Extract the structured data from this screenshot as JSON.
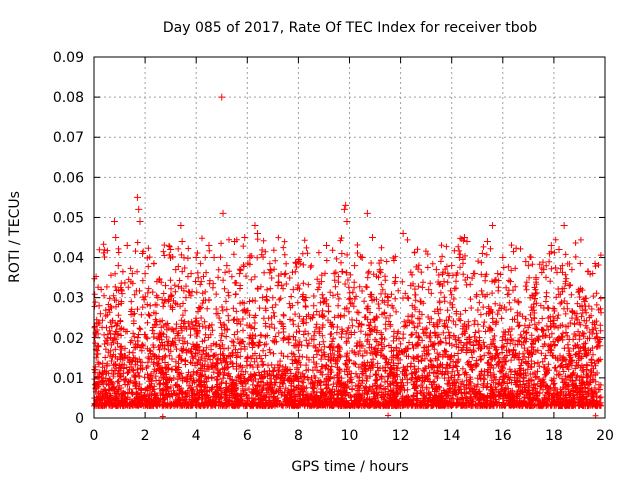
{
  "chart_data": {
    "type": "scatter",
    "title": "Day 085 of 2017, Rate Of TEC Index for receiver tbob",
    "xlabel": "GPS time / hours",
    "ylabel": "ROTI / TECUs",
    "xlim": [
      0,
      20
    ],
    "ylim": [
      0,
      0.09
    ],
    "xticks": [
      0,
      2,
      4,
      6,
      8,
      10,
      12,
      14,
      16,
      18,
      20
    ],
    "xtick_labels": [
      "0",
      "2",
      "4",
      "6",
      "8",
      "10",
      "12",
      "14",
      "16",
      "18",
      "20"
    ],
    "yticks": [
      0,
      0.01,
      0.02,
      0.03,
      0.04,
      0.05,
      0.06,
      0.07,
      0.08,
      0.09
    ],
    "ytick_labels": [
      "0",
      "0.01",
      "0.02",
      "0.03",
      "0.04",
      "0.05",
      "0.06",
      "0.07",
      "0.08",
      "0.09"
    ],
    "grid": true,
    "marker": "+",
    "color": "#ff0000",
    "series": [
      {
        "name": "ROTI",
        "points": [
          [
            0.05,
            0.012
          ],
          [
            0.15,
            0.016
          ],
          [
            0.2,
            0.028
          ],
          [
            0.25,
            0.026
          ],
          [
            0.3,
            0.009
          ],
          [
            0.5,
            0.013
          ],
          [
            0.65,
            0.021
          ],
          [
            0.8,
            0.049
          ],
          [
            0.85,
            0.045
          ],
          [
            0.95,
            0.038
          ],
          [
            1.1,
            0.031
          ],
          [
            1.3,
            0.043
          ],
          [
            1.5,
            0.036
          ],
          [
            1.7,
            0.055
          ],
          [
            1.75,
            0.052
          ],
          [
            1.8,
            0.049
          ],
          [
            1.9,
            0.041
          ],
          [
            2.0,
            0.036
          ],
          [
            2.2,
            0.028
          ],
          [
            2.5,
            0.03
          ],
          [
            2.8,
            0.033
          ],
          [
            3.0,
            0.042
          ],
          [
            3.2,
            0.037
          ],
          [
            3.4,
            0.048
          ],
          [
            3.45,
            0.044
          ],
          [
            3.6,
            0.03
          ],
          [
            3.8,
            0.036
          ],
          [
            4.0,
            0.04
          ],
          [
            4.2,
            0.034
          ],
          [
            4.5,
            0.043
          ],
          [
            4.7,
            0.04
          ],
          [
            5.0,
            0.08
          ],
          [
            5.05,
            0.051
          ],
          [
            5.2,
            0.038
          ],
          [
            5.5,
            0.044
          ],
          [
            5.7,
            0.036
          ],
          [
            5.9,
            0.045
          ],
          [
            6.1,
            0.04
          ],
          [
            6.3,
            0.048
          ],
          [
            6.4,
            0.046
          ],
          [
            6.6,
            0.03
          ],
          [
            6.9,
            0.037
          ],
          [
            7.2,
            0.033
          ],
          [
            7.5,
            0.036
          ],
          [
            7.8,
            0.032
          ],
          [
            8.0,
            0.039
          ],
          [
            8.3,
            0.03
          ],
          [
            8.6,
            0.028
          ],
          [
            8.9,
            0.034
          ],
          [
            9.1,
            0.043
          ],
          [
            9.4,
            0.036
          ],
          [
            9.7,
            0.041
          ],
          [
            9.8,
            0.052
          ],
          [
            9.85,
            0.053
          ],
          [
            9.9,
            0.049
          ],
          [
            10.2,
            0.038
          ],
          [
            10.5,
            0.04
          ],
          [
            10.7,
            0.051
          ],
          [
            10.9,
            0.045
          ],
          [
            11.2,
            0.037
          ],
          [
            11.5,
            0.03
          ],
          [
            11.8,
            0.035
          ],
          [
            12.1,
            0.046
          ],
          [
            12.4,
            0.033
          ],
          [
            12.8,
            0.029
          ],
          [
            13.1,
            0.032
          ],
          [
            13.4,
            0.037
          ],
          [
            13.7,
            0.034
          ],
          [
            14.0,
            0.038
          ],
          [
            14.3,
            0.04
          ],
          [
            14.5,
            0.045
          ],
          [
            14.6,
            0.044
          ],
          [
            14.9,
            0.036
          ],
          [
            15.2,
            0.041
          ],
          [
            15.4,
            0.044
          ],
          [
            15.6,
            0.048
          ],
          [
            15.8,
            0.036
          ],
          [
            16.0,
            0.04
          ],
          [
            16.3,
            0.034
          ],
          [
            16.6,
            0.029
          ],
          [
            16.9,
            0.039
          ],
          [
            17.0,
            0.038
          ],
          [
            17.3,
            0.035
          ],
          [
            17.6,
            0.037
          ],
          [
            17.9,
            0.043
          ],
          [
            18.2,
            0.042
          ],
          [
            18.4,
            0.048
          ],
          [
            18.6,
            0.033
          ],
          [
            18.9,
            0.026
          ],
          [
            19.2,
            0.029
          ],
          [
            19.5,
            0.022
          ],
          [
            19.7,
            0.02
          ],
          [
            19.8,
            0.018
          ]
        ]
      }
    ]
  }
}
